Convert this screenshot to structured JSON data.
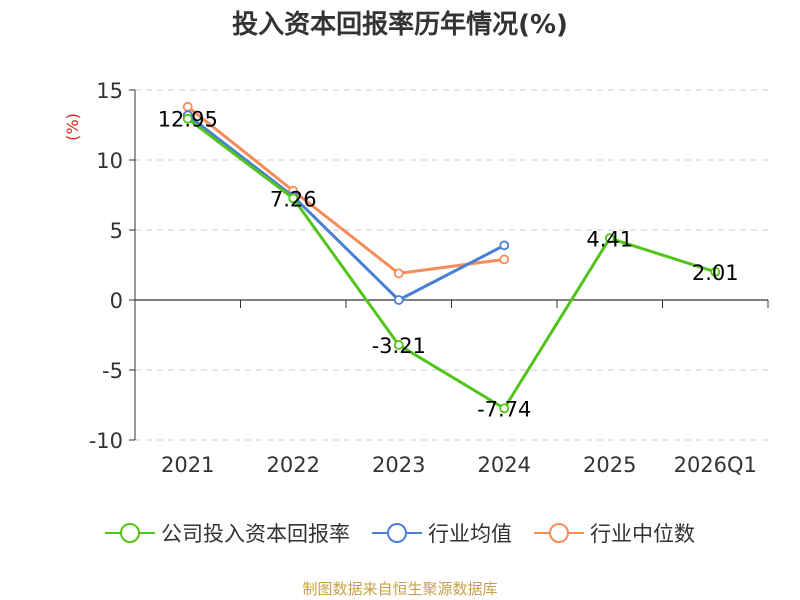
{
  "title": "投入资本回报率历年情况(%)",
  "source": "制图数据来自恒生聚源数据库",
  "colors": {
    "company": "#52c41a",
    "industry_avg": "#4a7fd6",
    "industry_median": "#f68c5a",
    "unit": "#e0201b"
  },
  "chart_data": {
    "type": "line",
    "categories": [
      "2021",
      "2022",
      "2023",
      "2024",
      "2025",
      "2026Q1"
    ],
    "ylabel": "(%)",
    "ylim": [
      -10,
      15
    ],
    "yticks": [
      15,
      10,
      5,
      0,
      -5,
      -10
    ],
    "grid": true,
    "legend_position": "bottom",
    "series": [
      {
        "name": "公司投入资本回报率",
        "color": "#52c41a",
        "values": [
          12.95,
          7.26,
          -3.21,
          -7.74,
          4.41,
          2.01
        ],
        "labels": [
          "12.95",
          "7.26",
          "-3.21",
          "-7.74",
          "4.41",
          "2.01"
        ]
      },
      {
        "name": "行业均值",
        "color": "#4a7fd6",
        "values": [
          13.2,
          7.4,
          0.0,
          3.9,
          null,
          null
        ]
      },
      {
        "name": "行业中位数",
        "color": "#f68c5a",
        "values": [
          13.8,
          7.8,
          1.9,
          2.9,
          null,
          null
        ]
      }
    ]
  }
}
